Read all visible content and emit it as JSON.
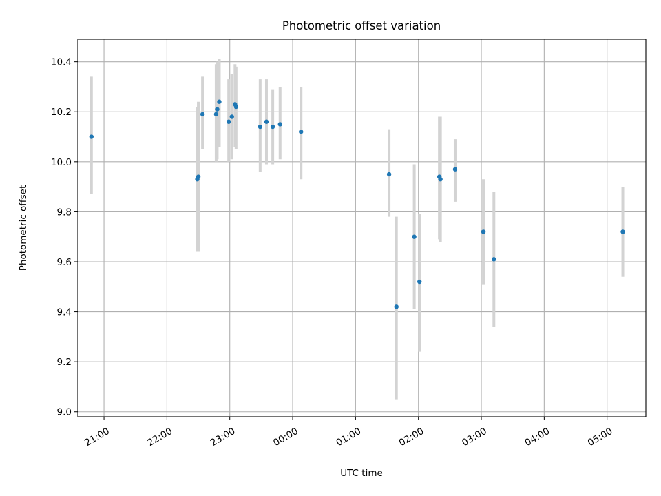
{
  "chart_data": {
    "type": "scatter",
    "title": "Photometric offset variation",
    "xlabel": "UTC time",
    "ylabel": "Photometric offset",
    "x_axis": {
      "kind": "time",
      "tick_labels": [
        "21:00",
        "22:00",
        "23:00",
        "00:00",
        "01:00",
        "02:00",
        "03:00",
        "04:00",
        "05:00"
      ],
      "xlim": [
        "20:35",
        "05:37"
      ]
    },
    "y_axis": {
      "ticks": [
        9.0,
        9.2,
        9.4,
        9.6,
        9.8,
        10.0,
        10.2,
        10.4
      ],
      "tick_labels": [
        "9.0",
        "9.2",
        "9.4",
        "9.6",
        "9.8",
        "10.0",
        "10.2",
        "10.4"
      ],
      "ylim": [
        8.98,
        10.49
      ]
    },
    "grid": true,
    "colors": {
      "point": "#1f77b4",
      "errorbar": "#d3d3d3"
    },
    "points": [
      {
        "time": "20:48",
        "y": 10.1,
        "err_low": 9.87,
        "err_high": 10.34
      },
      {
        "time": "22:29",
        "y": 9.93,
        "err_low": 9.64,
        "err_high": 10.22
      },
      {
        "time": "22:30",
        "y": 9.94,
        "err_low": 9.64,
        "err_high": 10.24
      },
      {
        "time": "22:34",
        "y": 10.19,
        "err_low": 10.05,
        "err_high": 10.34
      },
      {
        "time": "22:47",
        "y": 10.19,
        "err_low": 10.0,
        "err_high": 10.39
      },
      {
        "time": "22:48",
        "y": 10.21,
        "err_low": 10.01,
        "err_high": 10.4
      },
      {
        "time": "22:50",
        "y": 10.24,
        "err_low": 10.06,
        "err_high": 10.41
      },
      {
        "time": "22:59",
        "y": 10.16,
        "err_low": 10.0,
        "err_high": 10.33
      },
      {
        "time": "23:02",
        "y": 10.18,
        "err_low": 10.01,
        "err_high": 10.35
      },
      {
        "time": "23:05",
        "y": 10.23,
        "err_low": 10.06,
        "err_high": 10.39
      },
      {
        "time": "23:06",
        "y": 10.22,
        "err_low": 10.05,
        "err_high": 10.38
      },
      {
        "time": "23:29",
        "y": 10.14,
        "err_low": 9.96,
        "err_high": 10.33
      },
      {
        "time": "23:35",
        "y": 10.16,
        "err_low": 9.99,
        "err_high": 10.33
      },
      {
        "time": "23:41",
        "y": 10.14,
        "err_low": 9.99,
        "err_high": 10.29
      },
      {
        "time": "23:48",
        "y": 10.15,
        "err_low": 10.01,
        "err_high": 10.3
      },
      {
        "time": "00:08",
        "y": 10.12,
        "err_low": 9.93,
        "err_high": 10.3
      },
      {
        "time": "01:32",
        "y": 9.95,
        "err_low": 9.78,
        "err_high": 10.13
      },
      {
        "time": "01:39",
        "y": 9.42,
        "err_low": 9.05,
        "err_high": 9.78
      },
      {
        "time": "01:56",
        "y": 9.7,
        "err_low": 9.41,
        "err_high": 9.99
      },
      {
        "time": "02:01",
        "y": 9.52,
        "err_low": 9.24,
        "err_high": 9.79
      },
      {
        "time": "02:20",
        "y": 9.94,
        "err_low": 9.69,
        "err_high": 10.18
      },
      {
        "time": "02:21",
        "y": 9.93,
        "err_low": 9.68,
        "err_high": 10.18
      },
      {
        "time": "02:35",
        "y": 9.97,
        "err_low": 9.84,
        "err_high": 10.09
      },
      {
        "time": "03:02",
        "y": 9.72,
        "err_low": 9.51,
        "err_high": 9.93
      },
      {
        "time": "03:12",
        "y": 9.61,
        "err_low": 9.34,
        "err_high": 9.88
      },
      {
        "time": "05:15",
        "y": 9.72,
        "err_low": 9.54,
        "err_high": 9.9
      }
    ]
  }
}
